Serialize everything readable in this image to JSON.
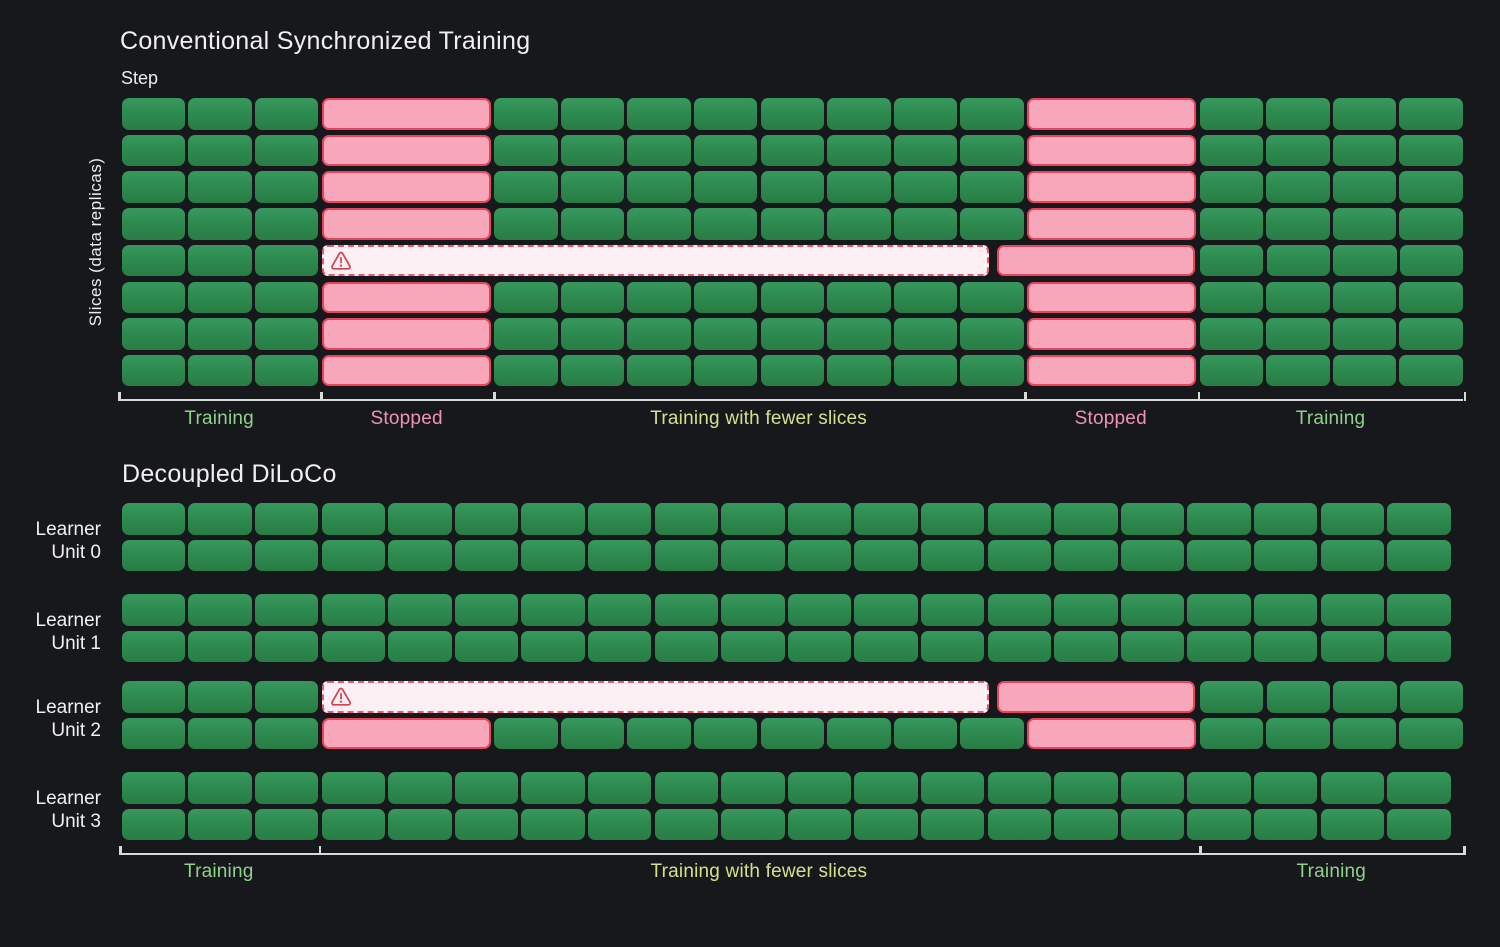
{
  "colors": {
    "background": "#17181c",
    "cell_green": "#2e8b50",
    "cell_green_light": "#37995e",
    "cell_green_dark": "#287d45",
    "cell_pink": "#f8a7bb",
    "pink_border": "#e8455c",
    "failure_fill": "#fdf0f5",
    "failure_border": "#ea5a70",
    "warning_red": "#d6404f",
    "label_green": "#90d18c",
    "label_pink": "#ef92b4",
    "label_yellow_green": "#d3e18c",
    "text_white": "#f0f0f1",
    "bracket_line": "#d9d9d9"
  },
  "top_chart": {
    "title": "Conventional Synchronized Training",
    "step_label": "Step",
    "y_axis_label": "Slices (data  replicas)",
    "num_rows": 8,
    "failed_row_index": 4,
    "normal_row_segments": [
      {
        "type": "green",
        "count": 3
      },
      {
        "type": "stopped"
      },
      {
        "type": "green",
        "count": 8
      },
      {
        "type": "stopped"
      },
      {
        "type": "green",
        "count": 4
      }
    ],
    "failed_row_segments": [
      {
        "type": "green",
        "count": 3
      },
      {
        "type": "failure_bar"
      },
      {
        "type": "restart_pink"
      },
      {
        "type": "green",
        "count": 4
      }
    ],
    "sections": [
      {
        "label": "Training",
        "color_key": "label_green"
      },
      {
        "label": "Stopped",
        "color_key": "label_pink"
      },
      {
        "label": "Training with fewer slices",
        "color_key": "label_yellow_green"
      },
      {
        "label": "Stopped",
        "color_key": "label_pink"
      },
      {
        "label": "Training",
        "color_key": "label_green"
      }
    ]
  },
  "bottom_chart": {
    "title": "Decoupled DiLoCo",
    "normal_unit_columns": 20,
    "units": [
      {
        "label_line1": "Learner",
        "label_line2": "Unit 0",
        "failed": false
      },
      {
        "label_line1": "Learner",
        "label_line2": "Unit 1",
        "failed": false
      },
      {
        "label_line1": "Learner",
        "label_line2": "Unit 2",
        "failed": true
      },
      {
        "label_line1": "Learner",
        "label_line2": "Unit 3",
        "failed": false
      }
    ],
    "failed_unit_top_row_segments": [
      {
        "type": "green",
        "count": 3
      },
      {
        "type": "failure_bar"
      },
      {
        "type": "restart_pink"
      },
      {
        "type": "green",
        "count": 4
      }
    ],
    "failed_unit_bottom_row_segments": [
      {
        "type": "green",
        "count": 3
      },
      {
        "type": "stopped"
      },
      {
        "type": "green",
        "count": 8
      },
      {
        "type": "stopped"
      },
      {
        "type": "green",
        "count": 4
      }
    ],
    "sections": [
      {
        "label": "Training",
        "color_key": "label_green"
      },
      {
        "label": "Training with fewer slices",
        "color_key": "label_yellow_green"
      },
      {
        "label": "Training",
        "color_key": "label_green"
      }
    ]
  }
}
